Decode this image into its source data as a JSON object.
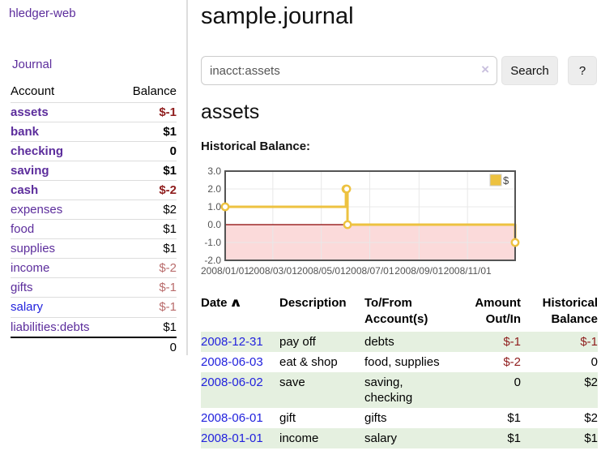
{
  "sidebar": {
    "brand": "hledger-web",
    "nav": {
      "journal": "Journal"
    },
    "table": {
      "account_header": "Account",
      "balance_header": "Balance"
    },
    "accounts": [
      {
        "name": "assets",
        "balance": "$-1"
      },
      {
        "name": "bank",
        "balance": "$1"
      },
      {
        "name": "checking",
        "balance": "0"
      },
      {
        "name": "saving",
        "balance": "$1"
      },
      {
        "name": "cash",
        "balance": "$-2"
      },
      {
        "name": "expenses",
        "balance": "$2"
      },
      {
        "name": "food",
        "balance": "$1"
      },
      {
        "name": "supplies",
        "balance": "$1"
      },
      {
        "name": "income",
        "balance": "$-2"
      },
      {
        "name": "gifts",
        "balance": "$-1"
      },
      {
        "name": "salary",
        "balance": "$-1"
      },
      {
        "name": "liabilities:debts",
        "balance": "$1"
      }
    ],
    "total": "0"
  },
  "main": {
    "title": "sample.journal",
    "search": {
      "value": "inacct:assets",
      "clear": "×",
      "button": "Search",
      "help": "?"
    },
    "account_heading": "assets",
    "chart_title": "Historical Balance:"
  },
  "chart_data": {
    "type": "line",
    "step": true,
    "title": "Historical Balance:",
    "series": [
      {
        "name": "$",
        "color": "#edc240",
        "points": [
          {
            "date": "2008-01-01",
            "day": 0,
            "value": 1
          },
          {
            "date": "2008-06-01",
            "day": 152,
            "value": 2
          },
          {
            "date": "2008-06-02",
            "day": 153,
            "value": 2
          },
          {
            "date": "2008-06-03",
            "day": 154,
            "value": 0
          },
          {
            "date": "2008-12-31",
            "day": 365,
            "value": -1
          }
        ]
      }
    ],
    "x_ticks": [
      {
        "label": "2008/01/01",
        "day": 0
      },
      {
        "label": "2008/03/01",
        "day": 60
      },
      {
        "label": "2008/05/01",
        "day": 121
      },
      {
        "label": "2008/07/01",
        "day": 182
      },
      {
        "label": "2008/09/01",
        "day": 244
      },
      {
        "label": "2008/11/01",
        "day": 305
      }
    ],
    "x_range_days": [
      0,
      365
    ],
    "y_ticks": [
      "3.0",
      "2.0",
      "1.0",
      "0.0",
      "-1.0",
      "-2.0"
    ],
    "ylim": [
      -2,
      3
    ],
    "legend": {
      "label": "$",
      "position": "top-right"
    },
    "grid": true,
    "negative_region_color": "#fbdada",
    "zero_line_color": "#8b0000",
    "border_color": "#545454"
  },
  "register": {
    "columns": {
      "date": "Date",
      "sort_indicator": "∧",
      "description": "Description",
      "tofrom": "To/From Account(s)",
      "amount": "Amount Out/In",
      "balance": "Historical Balance"
    },
    "rows": [
      {
        "date": "2008-12-31",
        "description": "pay off",
        "accounts": "debts",
        "amount": "$-1",
        "balance": "$-1"
      },
      {
        "date": "2008-06-03",
        "description": "eat & shop",
        "accounts": "food, supplies",
        "amount": "$-2",
        "balance": "0"
      },
      {
        "date": "2008-06-02",
        "description": "save",
        "accounts": "saving, checking",
        "amount": "0",
        "balance": "$2"
      },
      {
        "date": "2008-06-01",
        "description": "gift",
        "accounts": "gifts",
        "amount": "$1",
        "balance": "$2"
      },
      {
        "date": "2008-01-01",
        "description": "income",
        "accounts": "salary",
        "amount": "$1",
        "balance": "$1"
      }
    ]
  }
}
